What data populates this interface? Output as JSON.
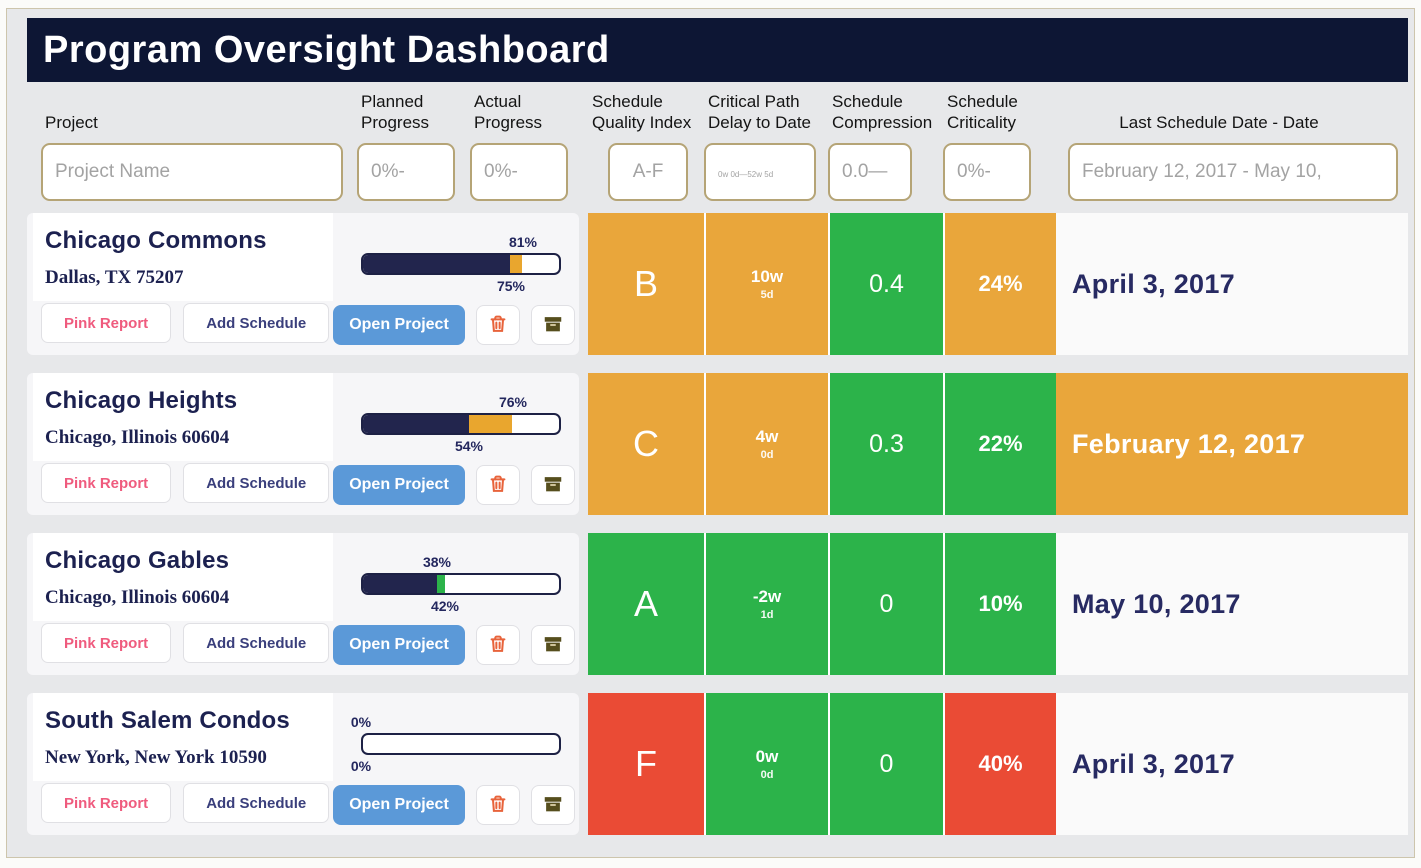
{
  "title": "Program Oversight Dashboard",
  "columns": {
    "project": "Project",
    "planned": "Planned Progress",
    "actual": "Actual Progress",
    "sqi": "Schedule Quality Index",
    "cpd": "Critical Path Delay to Date",
    "compression": "Schedule Compression",
    "criticality": "Schedule Criticality",
    "last_date": "Last Schedule Date - Date"
  },
  "filters": {
    "project_placeholder": "Project Name",
    "planned_placeholder": "0%-",
    "actual_placeholder": "0%-",
    "sqi_placeholder": "A-F",
    "cpd_placeholder": "0w 0d—52w 5d",
    "compression_placeholder": "0.0—",
    "criticality_placeholder": "0%-",
    "date_placeholder": "February 12, 2017 - May 10,"
  },
  "row_actions": {
    "pink_report": "Pink Report",
    "add_schedule": "Add Schedule",
    "open_project": "Open Project",
    "delete_icon": "trash-icon",
    "archive_icon": "archive-box-icon"
  },
  "status_colors": {
    "green": "#2cb34a",
    "orange": "#e9a63b",
    "red": "#ea4b35",
    "navy": "#22254d",
    "blue": "#5b99d8",
    "pink": "#ef5b7e"
  },
  "rows": [
    {
      "name": "Chicago Commons",
      "address": "Dallas, TX 75207",
      "planned": 81,
      "actual": 75,
      "planned_label": "81%",
      "actual_label": "75%",
      "sqi": "B",
      "cpd_weeks": "10w",
      "cpd_days": "5d",
      "compression": "0.4",
      "criticality": "24%",
      "date": "April 3, 2017",
      "colors": {
        "sqi": "#e9a63b",
        "cpd": "#e9a63b",
        "compression": "#2cb34a",
        "criticality": "#e9a63b",
        "bar_diff": "#e9a62e",
        "date_bg": "#fafafa",
        "date_text": "#272a62"
      }
    },
    {
      "name": "Chicago Heights",
      "address": "Chicago, Illinois 60604",
      "planned": 76,
      "actual": 54,
      "planned_label": "76%",
      "actual_label": "54%",
      "sqi": "C",
      "cpd_weeks": "4w",
      "cpd_days": "0d",
      "compression": "0.3",
      "criticality": "22%",
      "date": "February 12, 2017",
      "colors": {
        "sqi": "#e9a63b",
        "cpd": "#e9a63b",
        "compression": "#2cb34a",
        "criticality": "#2cb34a",
        "bar_diff": "#e9a62e",
        "date_bg": "#e9a63b",
        "date_text": "#ffffff"
      }
    },
    {
      "name": "Chicago Gables",
      "address": "Chicago, Illinois 60604",
      "planned": 38,
      "actual": 42,
      "planned_label": "38%",
      "actual_label": "42%",
      "sqi": "A",
      "cpd_weeks": "-2w",
      "cpd_days": "1d",
      "compression": "0",
      "criticality": "10%",
      "date": "May 10, 2017",
      "colors": {
        "sqi": "#2cb34a",
        "cpd": "#2cb34a",
        "compression": "#2cb34a",
        "criticality": "#2cb34a",
        "bar_diff": "#2cb34a",
        "date_bg": "#fafafa",
        "date_text": "#272a62"
      }
    },
    {
      "name": "South Salem Condos",
      "address": "New York, New York 10590",
      "planned": 0,
      "actual": 0,
      "planned_label": "0%",
      "actual_label": "0%",
      "sqi": "F",
      "cpd_weeks": "0w",
      "cpd_days": "0d",
      "compression": "0",
      "criticality": "40%",
      "date": "April 3, 2017",
      "colors": {
        "sqi": "#ea4b35",
        "cpd": "#2cb34a",
        "compression": "#2cb34a",
        "criticality": "#ea4b35",
        "bar_diff": "transparent",
        "date_bg": "#fafafa",
        "date_text": "#272a62"
      }
    }
  ]
}
